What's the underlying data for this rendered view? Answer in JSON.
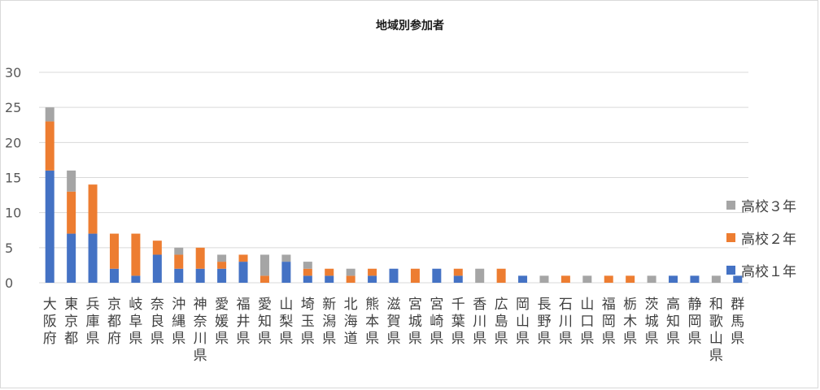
{
  "chart_data": {
    "type": "bar",
    "stacked": true,
    "title": "地域別参加者",
    "xlabel": "",
    "ylabel": "",
    "ylim": [
      0,
      30
    ],
    "yticks": [
      0,
      5,
      10,
      15,
      20,
      25,
      30
    ],
    "grid": true,
    "legend_position": "right",
    "categories": [
      "大阪府",
      "東京都",
      "兵庫県",
      "京都府",
      "岐阜県",
      "奈良県",
      "沖縄県",
      "神奈川県",
      "愛媛県",
      "福井県",
      "愛知県",
      "山梨県",
      "埼玉県",
      "新潟県",
      "北海道",
      "熊本県",
      "滋賀県",
      "宮城県",
      "宮崎県",
      "千葉県",
      "香川県",
      "広島県",
      "岡山県",
      "長野県",
      "石川県",
      "山口県",
      "福岡県",
      "栃木県",
      "茨城県",
      "高知県",
      "静岡県",
      "和歌山県",
      "群馬県"
    ],
    "series": [
      {
        "name": "高校１年",
        "color": "#4472c4",
        "values": [
          16,
          7,
          7,
          2,
          1,
          4,
          2,
          2,
          2,
          3,
          0,
          3,
          1,
          1,
          0,
          1,
          2,
          0,
          2,
          1,
          0,
          0,
          1,
          0,
          0,
          0,
          0,
          0,
          0,
          1,
          1,
          0,
          1
        ]
      },
      {
        "name": "高校２年",
        "color": "#ed7d31",
        "values": [
          7,
          6,
          7,
          5,
          6,
          2,
          2,
          3,
          1,
          1,
          1,
          0,
          1,
          1,
          1,
          1,
          0,
          2,
          0,
          1,
          0,
          2,
          0,
          0,
          1,
          0,
          1,
          1,
          0,
          0,
          0,
          0,
          0
        ]
      },
      {
        "name": "高校３年",
        "color": "#a5a5a5",
        "values": [
          2,
          3,
          0,
          0,
          0,
          0,
          1,
          0,
          1,
          0,
          3,
          1,
          1,
          0,
          1,
          0,
          0,
          0,
          0,
          0,
          2,
          0,
          0,
          1,
          0,
          1,
          0,
          0,
          1,
          0,
          0,
          1,
          0
        ]
      }
    ]
  }
}
